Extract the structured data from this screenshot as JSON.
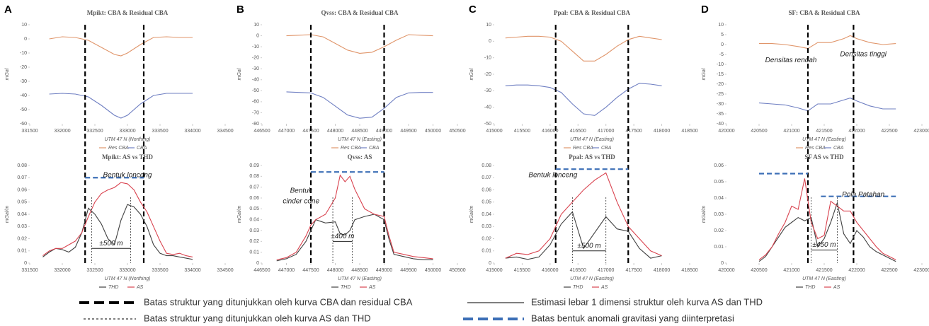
{
  "chart_data": [
    {
      "type": "line",
      "panel_label": "A",
      "title": "Mpikt: CBA & Residual CBA",
      "xlabel": "UTM 47 N  (Northing)",
      "ylabel": "mGal",
      "x": [
        331800,
        332000,
        332200,
        332400,
        332600,
        332800,
        332900,
        333000,
        333200,
        333400,
        333600,
        333800,
        334000
      ],
      "series": [
        {
          "name": "Res CBA",
          "color": "#e0956a",
          "values": [
            0,
            1.5,
            1,
            -1,
            -6,
            -11,
            -12,
            -10,
            -4,
            1,
            1.5,
            1,
            1
          ]
        },
        {
          "name": "CBA",
          "color": "#6f7fc2",
          "values": [
            -39,
            -38.5,
            -39,
            -41,
            -47,
            -54,
            -56,
            -54,
            -46,
            -40,
            -38.5,
            -38.5,
            -38.5
          ]
        }
      ],
      "xlim": [
        331500,
        334500
      ],
      "xticks": [
        331500,
        332000,
        332500,
        333000,
        333500,
        334000,
        334500
      ],
      "ylim": [
        -60,
        10
      ],
      "yticks": [
        -60,
        -50,
        -40,
        -30,
        -20,
        -10,
        0,
        10
      ],
      "boundaries": [
        332350,
        333250
      ]
    },
    {
      "type": "line",
      "title": "Mpikt: AS vs THD",
      "xlabel": "UTM 47 N  (Northing)",
      "ylabel": "mGal/m",
      "x": [
        331700,
        331800,
        331900,
        332000,
        332100,
        332200,
        332300,
        332400,
        332500,
        332600,
        332700,
        332800,
        332900,
        333000,
        333100,
        333200,
        333300,
        333400,
        333500,
        333600,
        333700,
        333800,
        333900,
        334000
      ],
      "series": [
        {
          "name": "THD",
          "color": "#404040",
          "values": [
            0.005,
            0.009,
            0.012,
            0.011,
            0.009,
            0.013,
            0.025,
            0.045,
            0.04,
            0.032,
            0.02,
            0.015,
            0.035,
            0.048,
            0.046,
            0.04,
            0.03,
            0.015,
            0.008,
            0.006,
            0.006,
            0.005,
            0.004,
            0.003
          ]
        },
        {
          "name": "AS",
          "color": "#d9434f",
          "values": [
            0.006,
            0.01,
            0.012,
            0.012,
            0.015,
            0.018,
            0.025,
            0.038,
            0.05,
            0.057,
            0.06,
            0.062,
            0.066,
            0.065,
            0.06,
            0.05,
            0.042,
            0.03,
            0.018,
            0.008,
            0.007,
            0.008,
            0.006,
            0.005
          ]
        }
      ],
      "xlim": [
        331500,
        334500
      ],
      "xticks": [
        331500,
        332000,
        332500,
        333000,
        333500,
        334000,
        334500
      ],
      "ylim": [
        0,
        0.08
      ],
      "yticks": [
        0,
        0.01,
        0.02,
        0.03,
        0.04,
        0.05,
        0.06,
        0.07,
        0.08
      ],
      "as_boundaries": [
        332450,
        333050
      ],
      "anomaly_lines": [
        {
          "y": 0.07,
          "x": [
            332350,
            333250
          ]
        }
      ],
      "width": {
        "x": [
          332450,
          333050
        ],
        "y": 0.012,
        "label": "±500 m"
      },
      "annotations": [
        "Bentuk lonceng"
      ]
    },
    {
      "type": "line",
      "panel_label": "B",
      "title": "Qvss: CBA & Residual CBA",
      "xlabel": "UTM 47 N  (Easting)",
      "ylabel": "mGal",
      "x": [
        447000,
        447250,
        447500,
        447750,
        448000,
        448250,
        448500,
        448750,
        449000,
        449250,
        449500,
        449750,
        450000
      ],
      "series": [
        {
          "name": "Res CBA",
          "color": "#e0956a",
          "values": [
            0,
            0.5,
            1,
            -1,
            -7,
            -13,
            -16,
            -15,
            -10,
            -4,
            1,
            0.5,
            0
          ]
        },
        {
          "name": "CBA",
          "color": "#6f7fc2",
          "values": [
            -51,
            -51.5,
            -52,
            -56,
            -64,
            -72,
            -75,
            -74,
            -66,
            -56,
            -52,
            -51.5,
            -51.5
          ]
        }
      ],
      "xlim": [
        446500,
        450500
      ],
      "xticks": [
        446500,
        447000,
        447500,
        448000,
        448500,
        449000,
        449500,
        450000,
        450500
      ],
      "ylim": [
        -80,
        10
      ],
      "yticks": [
        -80,
        -70,
        -60,
        -50,
        -40,
        -30,
        -20,
        -10,
        0,
        10
      ],
      "boundaries": [
        447500,
        449000
      ]
    },
    {
      "type": "line",
      "title": "Qvss: AS",
      "xlabel": "UTM 47 N  (Easting)",
      "ylabel": "mGal/m",
      "x": [
        446800,
        447000,
        447200,
        447400,
        447500,
        447600,
        447800,
        448000,
        448100,
        448200,
        448300,
        448400,
        448600,
        448800,
        449000,
        449100,
        449200,
        449400,
        449600,
        449800,
        450000
      ],
      "series": [
        {
          "name": "THD",
          "color": "#404040",
          "values": [
            0.002,
            0.004,
            0.008,
            0.02,
            0.03,
            0.04,
            0.037,
            0.038,
            0.027,
            0.026,
            0.03,
            0.04,
            0.043,
            0.045,
            0.04,
            0.022,
            0.008,
            0.006,
            0.004,
            0.003,
            0.003
          ]
        },
        {
          "name": "AS",
          "color": "#d9434f",
          "values": [
            0.003,
            0.005,
            0.01,
            0.025,
            0.035,
            0.04,
            0.045,
            0.06,
            0.081,
            0.075,
            0.08,
            0.068,
            0.05,
            0.045,
            0.043,
            0.025,
            0.01,
            0.008,
            0.006,
            0.005,
            0.004
          ]
        }
      ],
      "xlim": [
        446500,
        450500
      ],
      "xticks": [
        446500,
        447000,
        447500,
        448000,
        448500,
        449000,
        449500,
        450000,
        450500
      ],
      "ylim": [
        0,
        0.09
      ],
      "yticks": [
        0,
        0.01,
        0.02,
        0.03,
        0.04,
        0.05,
        0.06,
        0.07,
        0.08,
        0.09
      ],
      "as_boundaries": [
        447950,
        448350
      ],
      "anomaly_lines": [
        {
          "y": 0.084,
          "x": [
            447500,
            449000
          ]
        }
      ],
      "width": {
        "x": [
          447950,
          448350
        ],
        "y": 0.02,
        "label": "±400 m"
      },
      "annotations": [
        "Bentuk",
        "cinder cone"
      ]
    },
    {
      "type": "line",
      "panel_label": "C",
      "title": "Ppal: CBA & Residual CBA",
      "xlabel": "UTM 47 N  (Easting)",
      "ylabel": "mGal",
      "x": [
        415200,
        415400,
        415600,
        415800,
        416000,
        416200,
        416400,
        416600,
        416800,
        417000,
        417200,
        417400,
        417600,
        417800,
        418000
      ],
      "series": [
        {
          "name": "Res CBA",
          "color": "#e0956a",
          "values": [
            2,
            2.5,
            3,
            3,
            2.5,
            0,
            -6,
            -12,
            -12,
            -8,
            -3,
            1,
            3,
            2,
            1
          ]
        },
        {
          "name": "CBA",
          "color": "#6f7fc2",
          "values": [
            -27,
            -26.5,
            -26.5,
            -27,
            -28,
            -31,
            -38,
            -44,
            -45,
            -40,
            -34,
            -29,
            -25.5,
            -26,
            -27
          ]
        }
      ],
      "xlim": [
        415000,
        418500
      ],
      "xticks": [
        415000,
        415500,
        416000,
        416500,
        417000,
        417500,
        418000,
        418500
      ],
      "ylim": [
        -50,
        10
      ],
      "yticks": [
        -50,
        -40,
        -30,
        -20,
        -10,
        0,
        10
      ],
      "boundaries": [
        416100,
        417400
      ]
    },
    {
      "type": "line",
      "title": "Ppal: AS vs THD",
      "xlabel": "UTM 47 N  (Easting)",
      "ylabel": "mGal/m",
      "x": [
        415200,
        415400,
        415600,
        415800,
        416000,
        416200,
        416400,
        416600,
        416800,
        417000,
        417200,
        417400,
        417600,
        417800,
        418000
      ],
      "series": [
        {
          "name": "THD",
          "color": "#404040",
          "values": [
            0.004,
            0.005,
            0.003,
            0.005,
            0.015,
            0.032,
            0.042,
            0.012,
            0.025,
            0.038,
            0.028,
            0.026,
            0.012,
            0.004,
            0.006
          ]
        },
        {
          "name": "AS",
          "color": "#d9434f",
          "values": [
            0.004,
            0.008,
            0.007,
            0.01,
            0.02,
            0.04,
            0.05,
            0.06,
            0.068,
            0.074,
            0.05,
            0.03,
            0.02,
            0.01,
            0.006
          ]
        }
      ],
      "xlim": [
        415000,
        418500
      ],
      "xticks": [
        415000,
        415500,
        416000,
        416500,
        417000,
        417500,
        418000,
        418500
      ],
      "ylim": [
        0,
        0.08
      ],
      "yticks": [
        0,
        0.01,
        0.02,
        0.03,
        0.04,
        0.05,
        0.06,
        0.07,
        0.08
      ],
      "as_boundaries": [
        416400,
        417000
      ],
      "anomaly_lines": [
        {
          "y": 0.077,
          "x": [
            416100,
            417400
          ]
        }
      ],
      "width": {
        "x": [
          416400,
          417000
        ],
        "y": 0.01,
        "label": "±500 m"
      },
      "annotations": [
        "Bentuk lonceng"
      ]
    },
    {
      "type": "line",
      "panel_label": "D",
      "title": "SF: CBA & Residual CBA",
      "xlabel": "UTM 47 N  (Easting)",
      "ylabel": "mGal",
      "x": [
        420500,
        420700,
        420900,
        421100,
        421250,
        421400,
        421600,
        421800,
        421900,
        422000,
        422200,
        422400,
        422600
      ],
      "series": [
        {
          "name": "Res CBA",
          "color": "#e0956a",
          "values": [
            0.5,
            0.5,
            0,
            -1,
            -2,
            1,
            1,
            3,
            4.5,
            3,
            1,
            0,
            0.5
          ]
        },
        {
          "name": "CBA",
          "color": "#6f7fc2",
          "values": [
            -29.5,
            -30,
            -30.5,
            -32,
            -33.5,
            -30,
            -30,
            -28,
            -27,
            -28.5,
            -31,
            -32.5,
            -32.5
          ]
        }
      ],
      "xlim": [
        420000,
        423000
      ],
      "xticks": [
        420000,
        420500,
        421000,
        421500,
        422000,
        422500,
        423000
      ],
      "ylim": [
        -40,
        10
      ],
      "yticks": [
        -40,
        -35,
        -30,
        -25,
        -20,
        -15,
        -10,
        -5,
        0,
        5,
        10
      ],
      "boundaries": [
        421250,
        421950
      ],
      "annotations": [
        "Densitas rendah",
        "Densitas tinggi"
      ]
    },
    {
      "type": "line",
      "title": "SF      AS vs THD",
      "xlabel": "UTM 47 N  (Easting)",
      "ylabel": "mGal/m",
      "x": [
        420500,
        420600,
        420700,
        420800,
        420900,
        421000,
        421100,
        421200,
        421300,
        421400,
        421500,
        421600,
        421700,
        421800,
        421900,
        422000,
        422100,
        422200,
        422300,
        422400,
        422500,
        422600
      ],
      "series": [
        {
          "name": "THD",
          "color": "#404040",
          "values": [
            0.001,
            0.004,
            0.01,
            0.016,
            0.022,
            0.025,
            0.028,
            0.026,
            0.028,
            0.01,
            0.015,
            0.025,
            0.037,
            0.018,
            0.012,
            0.02,
            0.016,
            0.01,
            0.007,
            0.005,
            0.003,
            0.001
          ]
        },
        {
          "name": "AS",
          "color": "#d9434f",
          "values": [
            0.002,
            0.005,
            0.01,
            0.018,
            0.025,
            0.035,
            0.033,
            0.052,
            0.025,
            0.015,
            0.017,
            0.038,
            0.035,
            0.032,
            0.032,
            0.025,
            0.02,
            0.015,
            0.01,
            0.006,
            0.004,
            0.002
          ]
        }
      ],
      "xlim": [
        420000,
        423000
      ],
      "xticks": [
        420000,
        420500,
        421000,
        421500,
        422000,
        422500,
        423000
      ],
      "ylim": [
        0,
        0.06
      ],
      "yticks": [
        0,
        0.01,
        0.02,
        0.03,
        0.04,
        0.05,
        0.06
      ],
      "as_boundaries": [
        421300,
        421700
      ],
      "anomaly_lines": [
        {
          "y": 0.055,
          "x": [
            420500,
            421250
          ]
        },
        {
          "y": 0.041,
          "x": [
            421450,
            422600
          ]
        }
      ],
      "width": {
        "x": [
          421300,
          421700
        ],
        "y": 0.008,
        "label": "±450 m"
      },
      "annotations": [
        "Pola Patahan"
      ]
    }
  ],
  "figure_legend": [
    "Batas struktur yang ditunjukkan oleh kurva CBA dan residual CBA",
    "Estimasi lebar 1 dimensi struktur oleh kurva AS dan THD",
    "Batas struktur yang ditunjukkan oleh kurva AS dan THD",
    "Batas bentuk anomali gravitasi yang diinterpretasi"
  ]
}
